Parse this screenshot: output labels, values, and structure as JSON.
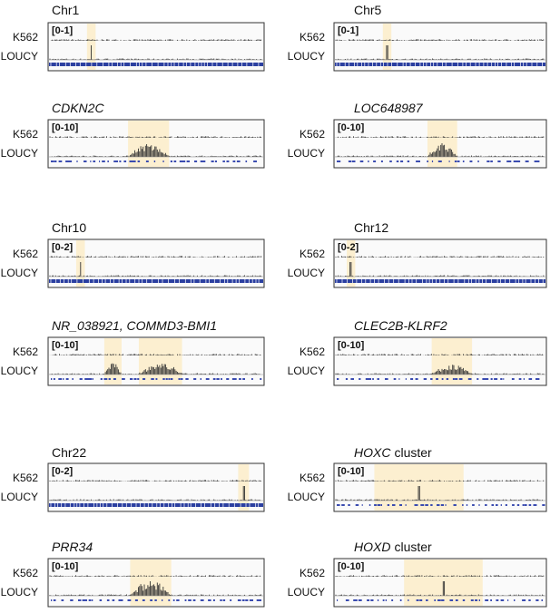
{
  "panels": [
    {
      "title": "Chr1",
      "range": "[0-1]",
      "tracks": [
        "K562",
        "LOUCY"
      ]
    },
    {
      "title": "Chr5",
      "range": "[0-1]",
      "tracks": [
        "K562",
        "LOUCY"
      ]
    },
    {
      "title": "CDKN2C",
      "range": "[0-10]",
      "tracks": [
        "K562",
        "LOUCY"
      ]
    },
    {
      "title": "LOC648987",
      "range": "[0-10]",
      "tracks": [
        "K562",
        "LOUCY"
      ]
    },
    {
      "title": "Chr10",
      "range": "[0-2]",
      "tracks": [
        "K562",
        "LOUCY"
      ]
    },
    {
      "title": "Chr12",
      "range": "[0-2]",
      "tracks": [
        "K562",
        "LOUCY"
      ]
    },
    {
      "title": "NR_038921, COMMD3-BMI1",
      "range": "[0-10]",
      "tracks": [
        "K562",
        "LOUCY"
      ]
    },
    {
      "title": "CLEC2B-KLRF2",
      "range": "[0-10]",
      "tracks": [
        "K562",
        "LOUCY"
      ]
    },
    {
      "title": "Chr22",
      "range": "[0-2]",
      "tracks": [
        "K562",
        "LOUCY"
      ]
    },
    {
      "title": "HOXC",
      "suffix": "cluster",
      "range": "[0-10]",
      "tracks": [
        "K562",
        "LOUCY"
      ]
    },
    {
      "title": "PRR34",
      "range": "[0-10]",
      "tracks": [
        "K562",
        "LOUCY"
      ]
    },
    {
      "title": "HOXD",
      "suffix": "cluster",
      "range": "[0-10]",
      "tracks": [
        "K562",
        "LOUCY"
      ]
    }
  ]
}
